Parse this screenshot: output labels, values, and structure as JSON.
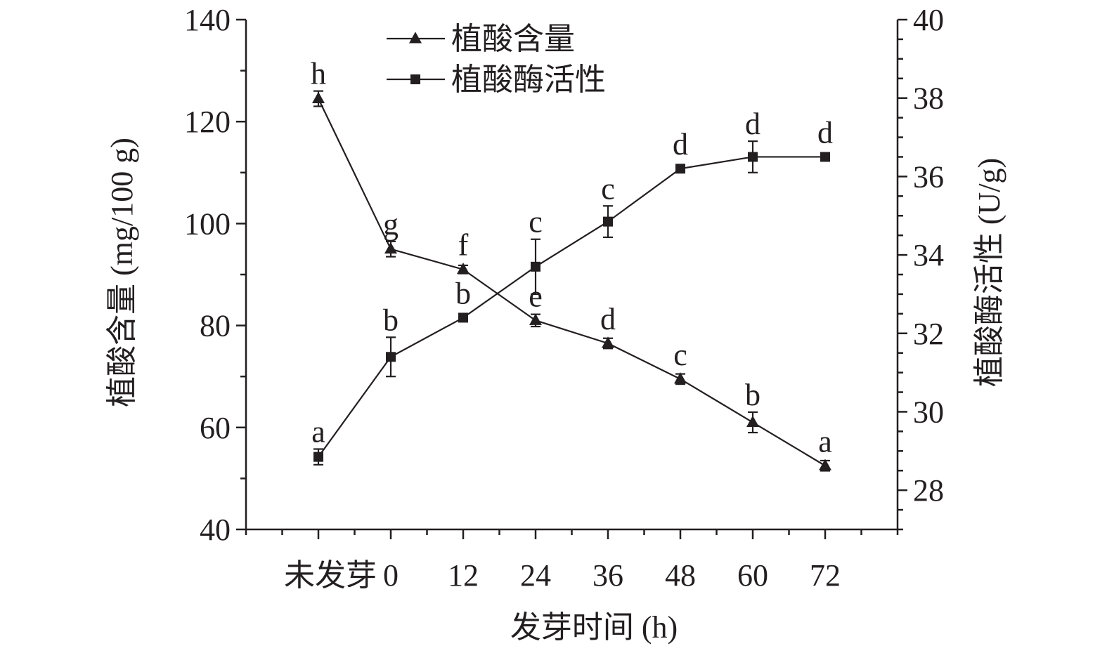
{
  "chart_data": {
    "type": "line",
    "xlabel": "发芽时间 (h)",
    "ylabel_left": "植酸含量 (mg/100 g)",
    "ylabel_right": "植酸酶活性 (U/g)",
    "categories": [
      "未发芽",
      "0",
      "12",
      "24",
      "36",
      "48",
      "60",
      "72"
    ],
    "ylim_left": [
      40,
      140
    ],
    "yticks_left": [
      "40",
      "60",
      "80",
      "100",
      "120",
      "140"
    ],
    "ylim_right": [
      27,
      40
    ],
    "yticks_right": [
      "28",
      "30",
      "32",
      "34",
      "36",
      "38",
      "40"
    ],
    "legend_position": "top-center",
    "grid": false,
    "series": [
      {
        "name": "植酸含量",
        "axis": "left",
        "marker": "triangle",
        "values": [
          124.5,
          95.0,
          91.0,
          81.0,
          76.5,
          69.5,
          61.0,
          52.5
        ],
        "errors": [
          1.5,
          1.5,
          0.8,
          1.2,
          1.0,
          1.0,
          2.0,
          1.0
        ],
        "labels": [
          "h",
          "g",
          "f",
          "e",
          "d",
          "c",
          "b",
          "a"
        ]
      },
      {
        "name": "植酸酶活性",
        "axis": "right",
        "marker": "square",
        "values": [
          28.85,
          31.4,
          32.4,
          33.7,
          34.85,
          36.2,
          36.5,
          36.5
        ],
        "errors": [
          0.2,
          0.5,
          0.1,
          0.7,
          0.4,
          0.1,
          0.4,
          0.05
        ],
        "labels": [
          "a",
          "b",
          "b",
          "c",
          "c",
          "d",
          "d",
          "d"
        ]
      }
    ]
  }
}
